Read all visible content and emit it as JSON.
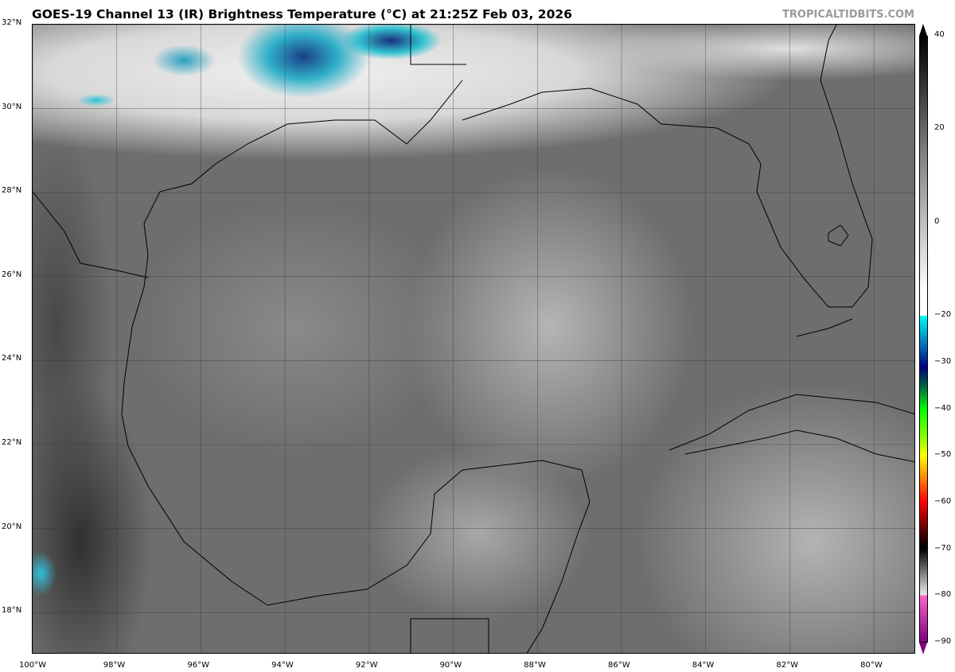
{
  "title": "GOES-19 Channel 13 (IR) Brightness Temperature (°C) at 21:25Z Feb 03, 2026",
  "credit": "TROPICALTIDBITS.COM",
  "map": {
    "lon_range": [
      -100,
      -79
    ],
    "lat_range": [
      17,
      32
    ],
    "lon_ticks": [
      -100,
      -98,
      -96,
      -94,
      -92,
      -90,
      -88,
      -86,
      -84,
      -82,
      -80
    ],
    "lon_labels": [
      "100°W",
      "98°W",
      "96°W",
      "94°W",
      "92°W",
      "90°W",
      "88°W",
      "86°W",
      "84°W",
      "82°W",
      "80°W"
    ],
    "lat_ticks": [
      32,
      30,
      28,
      26,
      24,
      22,
      20,
      18
    ],
    "lat_labels": [
      "32°N",
      "30°N",
      "28°N",
      "26°N",
      "24°N",
      "22°N",
      "20°N",
      "18°N"
    ],
    "grid": true
  },
  "colorbar": {
    "range": [
      -90,
      40
    ],
    "ticks": [
      40,
      20,
      0,
      -20,
      -30,
      -40,
      -50,
      -60,
      -70,
      -80,
      -90
    ],
    "tick_labels": [
      "40",
      "20",
      "0",
      "−20",
      "−30",
      "−40",
      "−50",
      "−60",
      "−70",
      "−80",
      "−90"
    ],
    "extend": "both",
    "colors": {
      "top": "#000000",
      "warm_gray": "#808080",
      "cold_white": "#ffffff",
      "cyan": "#00ffff",
      "navy": "#000080",
      "green": "#00ff00",
      "yellow": "#ffff00",
      "red": "#ff0000",
      "dark_red": "#400000",
      "pink": "#ff66cc",
      "purple": "#800080"
    }
  }
}
